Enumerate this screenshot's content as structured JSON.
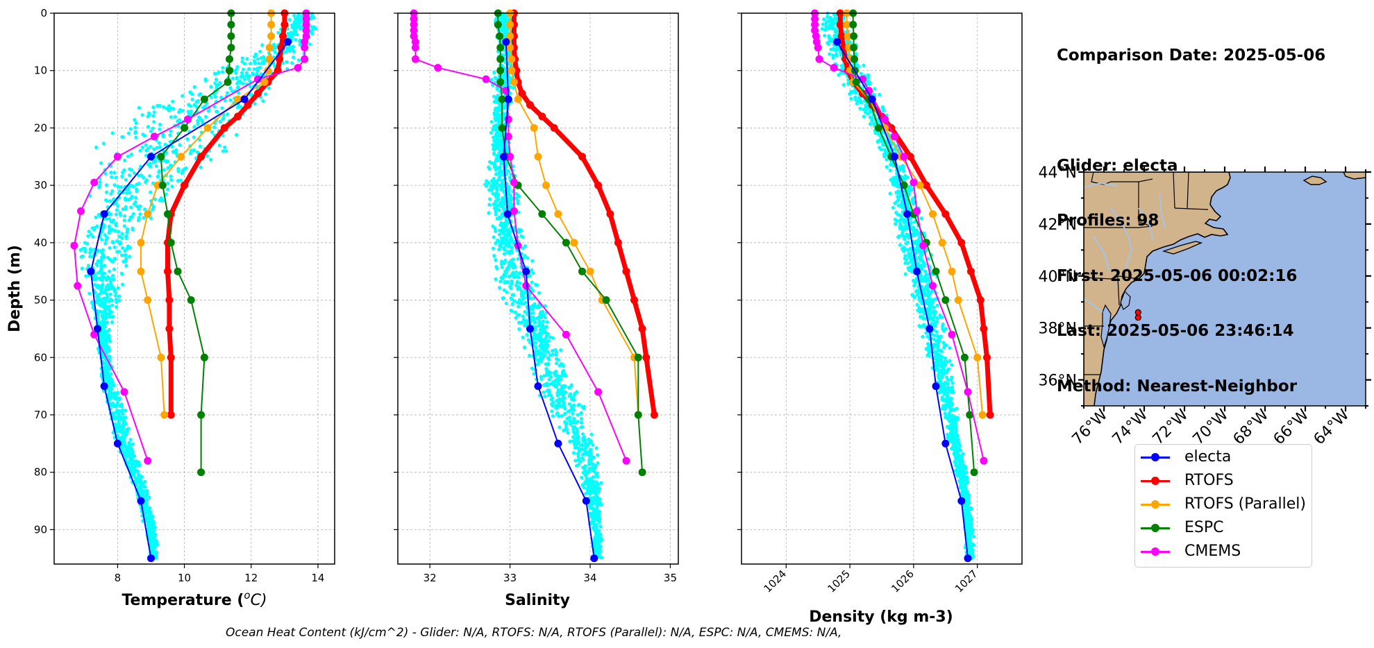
{
  "info": {
    "comparison_date": "Comparison Date: 2025-05-06",
    "glider": "Glider: electa",
    "profiles": "Profiles: 98",
    "first": "First: 2025-05-06 00:02:16",
    "last": "Last: 2025-05-06 23:46:14",
    "method": "Method: Nearest-Neighbor"
  },
  "footnote": "Ocean Heat Content (kJ/cm^2) - Glider: N/A,  RTOFS: N/A,  RTOFS (Parallel): N/A,  ESPC: N/A,  CMEMS: N/A,",
  "colors": {
    "electa": "#0000ff",
    "RTOFS": "#ff0000",
    "RTOFS (Parallel)": "#ffa500",
    "ESPC": "#008000",
    "CMEMS": "#ff00ff",
    "scatter": "#00ffff",
    "ocean": "#9ab8e3",
    "land": "#d2b48c",
    "lakes": "#a6c4e6"
  },
  "legend": [
    {
      "name": "electa",
      "color": "#0000ff"
    },
    {
      "name": "RTOFS",
      "color": "#ff0000"
    },
    {
      "name": "RTOFS (Parallel)",
      "color": "#ffa500"
    },
    {
      "name": "ESPC",
      "color": "#008000"
    },
    {
      "name": "CMEMS",
      "color": "#ff00ff"
    }
  ],
  "map": {
    "lat_labels": [
      "44°N",
      "42°N",
      "40°N",
      "38°N",
      "36°N"
    ],
    "lon_labels": [
      "76°W",
      "74°W",
      "72°W",
      "70°W",
      "68°W",
      "66°W",
      "64°W"
    ],
    "lat_values": [
      44,
      42,
      40,
      38,
      36
    ],
    "lon_values": [
      -76,
      -74,
      -72,
      -70,
      -68,
      -66,
      -64
    ],
    "lon_range": [
      -77,
      -63
    ],
    "lat_range": [
      35,
      44
    ],
    "glider_positions": [
      [
        -74.3,
        38.6
      ],
      [
        -74.3,
        38.4
      ]
    ]
  },
  "chart_data": [
    {
      "type": "line",
      "xlabel": "Temperature ($^oC$)",
      "xlabel_main": "Temperature (",
      "xlabel_sup": "o",
      "xlabel_tail": "C)",
      "ylabel": "Depth (m)",
      "xlim": [
        6.1,
        14.5
      ],
      "ylim": [
        96,
        0
      ],
      "xticks": [
        8,
        10,
        12,
        14
      ],
      "yticks": [
        0,
        10,
        20,
        30,
        40,
        50,
        60,
        70,
        80,
        90
      ],
      "grid": true,
      "scatter_envelope": {
        "depth": [
          0,
          5,
          10,
          15,
          20,
          25,
          30,
          35,
          40,
          45,
          50,
          55,
          60,
          65,
          70,
          75,
          80,
          85,
          90,
          95
        ],
        "min": [
          13.3,
          12.3,
          10.8,
          9.0,
          7.4,
          7.1,
          7.0,
          6.9,
          6.6,
          6.8,
          7.2,
          7.3,
          7.4,
          7.5,
          7.7,
          7.9,
          8.3,
          8.6,
          8.8,
          9.0
        ],
        "max": [
          14.1,
          14.0,
          13.3,
          12.6,
          12.0,
          11.3,
          10.2,
          9.2,
          8.6,
          8.3,
          8.1,
          7.8,
          7.8,
          8.0,
          8.3,
          8.5,
          8.8,
          9.0,
          9.2,
          9.2
        ]
      },
      "series": [
        {
          "name": "electa",
          "width": 2,
          "depth": [
            5,
            15,
            25,
            35,
            45,
            55,
            65,
            75,
            85,
            95
          ],
          "values": [
            13.1,
            11.8,
            9.0,
            7.6,
            7.2,
            7.4,
            7.6,
            8.0,
            8.7,
            9.0
          ]
        },
        {
          "name": "RTOFS",
          "width": 7,
          "depth": [
            0,
            2,
            4,
            6,
            8,
            10,
            12,
            14,
            16,
            18,
            20,
            25,
            30,
            35,
            40,
            45,
            50,
            55,
            60,
            70
          ],
          "values": [
            13.0,
            13.0,
            12.95,
            12.9,
            12.85,
            12.8,
            12.5,
            12.2,
            11.9,
            11.6,
            11.2,
            10.5,
            10.0,
            9.6,
            9.5,
            9.5,
            9.55,
            9.55,
            9.6,
            9.6
          ]
        },
        {
          "name": "RTOFS (Parallel)",
          "width": 2,
          "depth": [
            0,
            2,
            4,
            6,
            8,
            10,
            12,
            15,
            20,
            25,
            30,
            35,
            40,
            45,
            50,
            60,
            70
          ],
          "values": [
            12.6,
            12.6,
            12.6,
            12.55,
            12.55,
            12.5,
            12.4,
            11.6,
            10.7,
            9.9,
            9.2,
            8.9,
            8.7,
            8.7,
            8.9,
            9.3,
            9.4
          ]
        },
        {
          "name": "ESPC",
          "width": 2,
          "depth": [
            0,
            2,
            4,
            6,
            8,
            10,
            12,
            15,
            20,
            25,
            30,
            35,
            40,
            45,
            50,
            60,
            70,
            80
          ],
          "values": [
            11.4,
            11.4,
            11.4,
            11.4,
            11.35,
            11.35,
            11.3,
            10.6,
            10.0,
            9.3,
            9.35,
            9.5,
            9.6,
            9.8,
            10.2,
            10.6,
            10.5,
            10.5
          ]
        },
        {
          "name": "CMEMS",
          "width": 2,
          "depth": [
            0,
            1,
            2,
            3,
            4,
            5,
            6,
            8,
            9.5,
            11.5,
            18.5,
            21.5,
            25,
            29.5,
            34.5,
            40.5,
            47.5,
            56,
            66,
            78
          ],
          "values": [
            13.65,
            13.65,
            13.65,
            13.65,
            13.65,
            13.6,
            13.6,
            13.6,
            13.4,
            12.2,
            10.1,
            9.1,
            8.0,
            7.3,
            6.9,
            6.7,
            6.8,
            7.3,
            8.2,
            8.9
          ]
        }
      ]
    },
    {
      "type": "line",
      "xlabel": "Salinity",
      "xlim": [
        31.6,
        35.1
      ],
      "ylim": [
        96,
        0
      ],
      "xticks": [
        32,
        33,
        34,
        35
      ],
      "yticks": [
        0,
        10,
        20,
        30,
        40,
        50,
        60,
        70,
        80,
        90
      ],
      "grid": true,
      "scatter_envelope": {
        "depth": [
          0,
          5,
          10,
          15,
          20,
          25,
          30,
          35,
          40,
          45,
          50,
          55,
          60,
          65,
          70,
          75,
          80,
          85,
          90,
          95
        ],
        "min": [
          32.8,
          32.82,
          32.78,
          32.75,
          32.75,
          32.72,
          32.65,
          32.72,
          32.75,
          32.75,
          32.9,
          33.1,
          33.2,
          33.3,
          33.5,
          33.7,
          33.85,
          33.95,
          34.0,
          34.05
        ],
        "max": [
          33.02,
          33.05,
          33.08,
          33.05,
          33.0,
          33.05,
          33.1,
          33.15,
          33.25,
          33.35,
          33.45,
          33.55,
          33.7,
          33.85,
          34.0,
          34.1,
          34.15,
          34.15,
          34.15,
          34.15
        ]
      },
      "series": [
        {
          "name": "electa",
          "width": 2,
          "depth": [
            5,
            15,
            25,
            35,
            45,
            55,
            65,
            75,
            85,
            95
          ],
          "values": [
            32.95,
            32.98,
            32.92,
            32.97,
            33.2,
            33.25,
            33.35,
            33.6,
            33.95,
            34.05
          ]
        },
        {
          "name": "RTOFS",
          "width": 7,
          "depth": [
            0,
            2,
            4,
            6,
            8,
            10,
            12,
            14,
            16,
            18,
            20,
            25,
            30,
            35,
            40,
            45,
            50,
            55,
            60,
            70
          ],
          "values": [
            33.05,
            33.05,
            33.05,
            33.05,
            33.06,
            33.08,
            33.1,
            33.15,
            33.25,
            33.4,
            33.55,
            33.9,
            34.1,
            34.25,
            34.35,
            34.45,
            34.55,
            34.65,
            34.7,
            34.8
          ]
        },
        {
          "name": "RTOFS (Parallel)",
          "width": 2,
          "depth": [
            0,
            2,
            4,
            6,
            8,
            10,
            12,
            15,
            20,
            25,
            30,
            35,
            40,
            45,
            50,
            60,
            70
          ],
          "values": [
            33.0,
            33.0,
            33.0,
            33.0,
            33.02,
            33.02,
            33.05,
            33.1,
            33.3,
            33.35,
            33.45,
            33.6,
            33.8,
            34.0,
            34.15,
            34.55,
            34.6
          ]
        },
        {
          "name": "ESPC",
          "width": 2,
          "depth": [
            0,
            2,
            4,
            6,
            8,
            10,
            12,
            15,
            20,
            25,
            30,
            35,
            40,
            45,
            50,
            60,
            70,
            80
          ],
          "values": [
            32.85,
            32.85,
            32.87,
            32.88,
            32.88,
            32.88,
            32.88,
            32.9,
            32.9,
            32.95,
            33.1,
            33.4,
            33.7,
            33.9,
            34.2,
            34.6,
            34.6,
            34.65
          ]
        },
        {
          "name": "CMEMS",
          "width": 2,
          "depth": [
            0,
            1,
            2,
            3,
            4,
            5,
            6,
            8,
            9.5,
            11.5,
            13.5,
            18.5,
            21.5,
            25,
            29.5,
            34.5,
            40.5,
            47.5,
            56,
            66,
            78
          ],
          "values": [
            31.8,
            31.8,
            31.8,
            31.8,
            31.8,
            31.82,
            31.82,
            31.82,
            32.1,
            32.7,
            32.95,
            32.98,
            32.98,
            33.0,
            33.05,
            33.05,
            33.1,
            33.2,
            33.7,
            34.1,
            34.45
          ]
        }
      ]
    },
    {
      "type": "line",
      "xlabel": "Density (kg m-3)",
      "xlim": [
        1023.3,
        1027.7
      ],
      "ylim": [
        96,
        0
      ],
      "xticks": [
        1024,
        1025,
        1026,
        1027
      ],
      "yticks": [
        0,
        10,
        20,
        30,
        40,
        50,
        60,
        70,
        80,
        90
      ],
      "grid": true,
      "scatter_envelope": {
        "depth": [
          0,
          5,
          10,
          15,
          20,
          25,
          30,
          35,
          40,
          45,
          50,
          55,
          60,
          65,
          70,
          75,
          80,
          85,
          90,
          95
        ],
        "min": [
          1024.5,
          1024.6,
          1024.7,
          1025.0,
          1025.3,
          1025.5,
          1025.6,
          1025.65,
          1025.75,
          1025.85,
          1025.95,
          1026.1,
          1026.2,
          1026.35,
          1026.45,
          1026.55,
          1026.65,
          1026.75,
          1026.8,
          1026.8
        ],
        "max": [
          1025.0,
          1025.1,
          1025.3,
          1025.5,
          1025.7,
          1025.85,
          1026.0,
          1026.15,
          1026.25,
          1026.35,
          1026.45,
          1026.55,
          1026.6,
          1026.65,
          1026.7,
          1026.75,
          1026.85,
          1026.9,
          1026.95,
          1026.95
        ]
      },
      "series": [
        {
          "name": "electa",
          "width": 2,
          "depth": [
            5,
            15,
            25,
            35,
            45,
            55,
            65,
            75,
            85,
            95
          ],
          "values": [
            1024.8,
            1025.35,
            1025.7,
            1025.9,
            1026.05,
            1026.25,
            1026.35,
            1026.5,
            1026.75,
            1026.85
          ]
        },
        {
          "name": "RTOFS",
          "width": 7,
          "depth": [
            0,
            2,
            4,
            6,
            8,
            10,
            12,
            14,
            16,
            18,
            20,
            25,
            30,
            35,
            40,
            45,
            50,
            55,
            60,
            70
          ],
          "values": [
            1024.85,
            1024.85,
            1024.87,
            1024.9,
            1024.93,
            1024.97,
            1025.05,
            1025.2,
            1025.35,
            1025.5,
            1025.65,
            1025.95,
            1026.2,
            1026.5,
            1026.75,
            1026.9,
            1027.05,
            1027.1,
            1027.15,
            1027.2
          ]
        },
        {
          "name": "RTOFS (Parallel)",
          "width": 2,
          "depth": [
            0,
            2,
            4,
            6,
            8,
            10,
            12,
            15,
            20,
            25,
            30,
            35,
            40,
            45,
            50,
            60,
            70
          ],
          "values": [
            1024.95,
            1024.95,
            1024.97,
            1024.98,
            1025.0,
            1025.0,
            1025.05,
            1025.3,
            1025.55,
            1025.8,
            1026.1,
            1026.3,
            1026.45,
            1026.6,
            1026.7,
            1027.0,
            1027.08
          ]
        },
        {
          "name": "ESPC",
          "width": 2,
          "depth": [
            0,
            2,
            4,
            6,
            8,
            10,
            12,
            15,
            20,
            25,
            30,
            35,
            40,
            45,
            50,
            60,
            70,
            80
          ],
          "values": [
            1025.05,
            1025.05,
            1025.06,
            1025.06,
            1025.07,
            1025.08,
            1025.1,
            1025.3,
            1025.45,
            1025.65,
            1025.85,
            1026.0,
            1026.2,
            1026.35,
            1026.5,
            1026.8,
            1026.88,
            1026.95
          ]
        },
        {
          "name": "CMEMS",
          "width": 2,
          "depth": [
            0,
            1,
            2,
            3,
            4,
            5,
            6,
            8,
            9.5,
            11.5,
            13.5,
            18.5,
            21.5,
            25,
            29.5,
            34.5,
            40.5,
            47.5,
            56,
            66,
            78
          ],
          "values": [
            1024.45,
            1024.45,
            1024.45,
            1024.45,
            1024.47,
            1024.48,
            1024.5,
            1024.52,
            1024.75,
            1025.2,
            1025.3,
            1025.55,
            1025.7,
            1025.85,
            1026.0,
            1026.05,
            1026.15,
            1026.3,
            1026.6,
            1026.85,
            1027.1
          ]
        }
      ]
    }
  ]
}
